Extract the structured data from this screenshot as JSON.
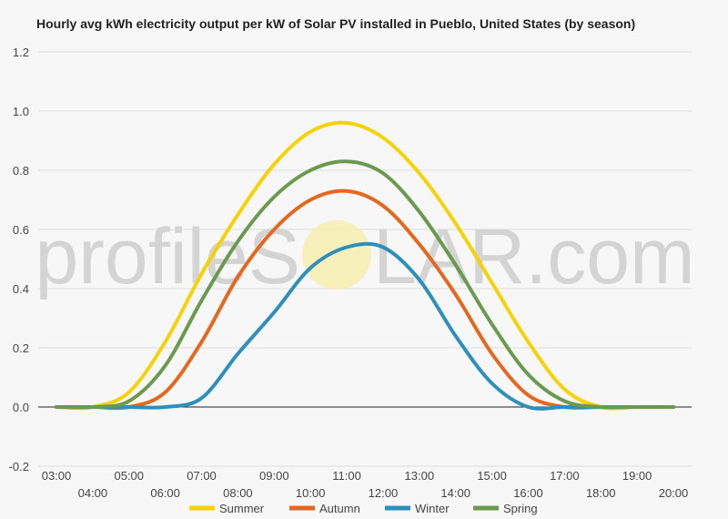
{
  "chart_data": {
    "type": "line",
    "title": "Hourly avg kWh electricity output per kW of Solar PV installed in Pueblo, United States (by season)",
    "watermark": {
      "left": "profileS",
      "right": "LAR.com"
    },
    "x": [
      "03:00",
      "04:00",
      "05:00",
      "06:00",
      "07:00",
      "08:00",
      "09:00",
      "10:00",
      "11:00",
      "12:00",
      "13:00",
      "14:00",
      "15:00",
      "16:00",
      "17:00",
      "18:00",
      "19:00",
      "20:00"
    ],
    "ylim": [
      -0.2,
      1.2
    ],
    "yticks": [
      -0.2,
      0.0,
      0.2,
      0.4,
      0.6,
      0.8,
      1.0,
      1.2
    ],
    "ytick_labels": [
      "-0.2",
      "0.0",
      "0.2",
      "0.4",
      "0.6",
      "0.8",
      "1.0",
      "1.2"
    ],
    "grid": true,
    "legend_position": "bottom",
    "series": [
      {
        "name": "Summer",
        "color": "#f5d20a",
        "values": [
          0.0,
          0.0,
          0.05,
          0.22,
          0.45,
          0.65,
          0.82,
          0.93,
          0.96,
          0.91,
          0.79,
          0.62,
          0.42,
          0.22,
          0.06,
          0.0,
          0.0,
          0.0
        ]
      },
      {
        "name": "Autumn",
        "color": "#e2691f",
        "values": [
          0.0,
          0.0,
          0.0,
          0.05,
          0.22,
          0.44,
          0.6,
          0.7,
          0.73,
          0.68,
          0.55,
          0.38,
          0.18,
          0.04,
          0.0,
          0.0,
          0.0,
          0.0
        ]
      },
      {
        "name": "Winter",
        "color": "#2e90ba",
        "values": [
          0.0,
          0.0,
          0.0,
          0.0,
          0.03,
          0.18,
          0.32,
          0.47,
          0.54,
          0.54,
          0.43,
          0.24,
          0.08,
          0.0,
          0.0,
          0.0,
          0.0,
          0.0
        ]
      },
      {
        "name": "Spring",
        "color": "#6b9a4f",
        "values": [
          0.0,
          0.0,
          0.02,
          0.14,
          0.36,
          0.56,
          0.71,
          0.8,
          0.83,
          0.79,
          0.66,
          0.48,
          0.28,
          0.11,
          0.02,
          0.0,
          0.0,
          0.0
        ]
      }
    ]
  }
}
